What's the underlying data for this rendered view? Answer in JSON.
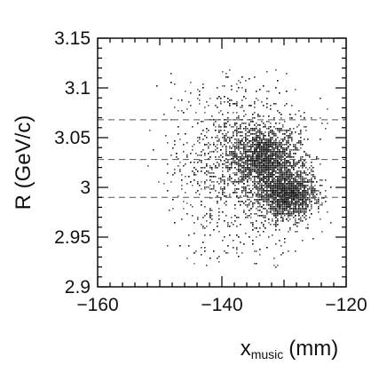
{
  "chart_data": {
    "type": "scatter",
    "title": "",
    "xlabel": "x",
    "xlabel_subscript": "music",
    "xlabel_unit": "(mm)",
    "ylabel": "R (GeV/c)",
    "xlim": [
      -160,
      -120
    ],
    "ylim": [
      2.9,
      3.15
    ],
    "x_ticks": [
      -160,
      -140,
      -120
    ],
    "x_tick_labels": [
      "−160",
      "−140",
      "−120"
    ],
    "y_ticks": [
      2.9,
      2.95,
      3.0,
      3.05,
      3.1,
      3.15
    ],
    "y_tick_labels": [
      "2.9",
      "2.95",
      "3",
      "3.05",
      "3.1",
      "3.15"
    ],
    "grid": false,
    "reference_lines_y": [
      2.99,
      3.028,
      3.068
    ],
    "reference_line_style": "dashed",
    "clusters": [
      {
        "x_center": -133.5,
        "y_center": 3.03,
        "x_spread": 2.8,
        "y_spread": 0.016,
        "weight": 0.38
      },
      {
        "x_center": -129.5,
        "y_center": 2.993,
        "x_spread": 2.2,
        "y_spread": 0.012,
        "weight": 0.34
      },
      {
        "x_center": -137.0,
        "y_center": 3.02,
        "x_spread": 5.5,
        "y_spread": 0.045,
        "weight": 0.28
      }
    ],
    "colors": {
      "points": "#000000",
      "reference_lines": "#555555",
      "axes": "#000000"
    }
  }
}
